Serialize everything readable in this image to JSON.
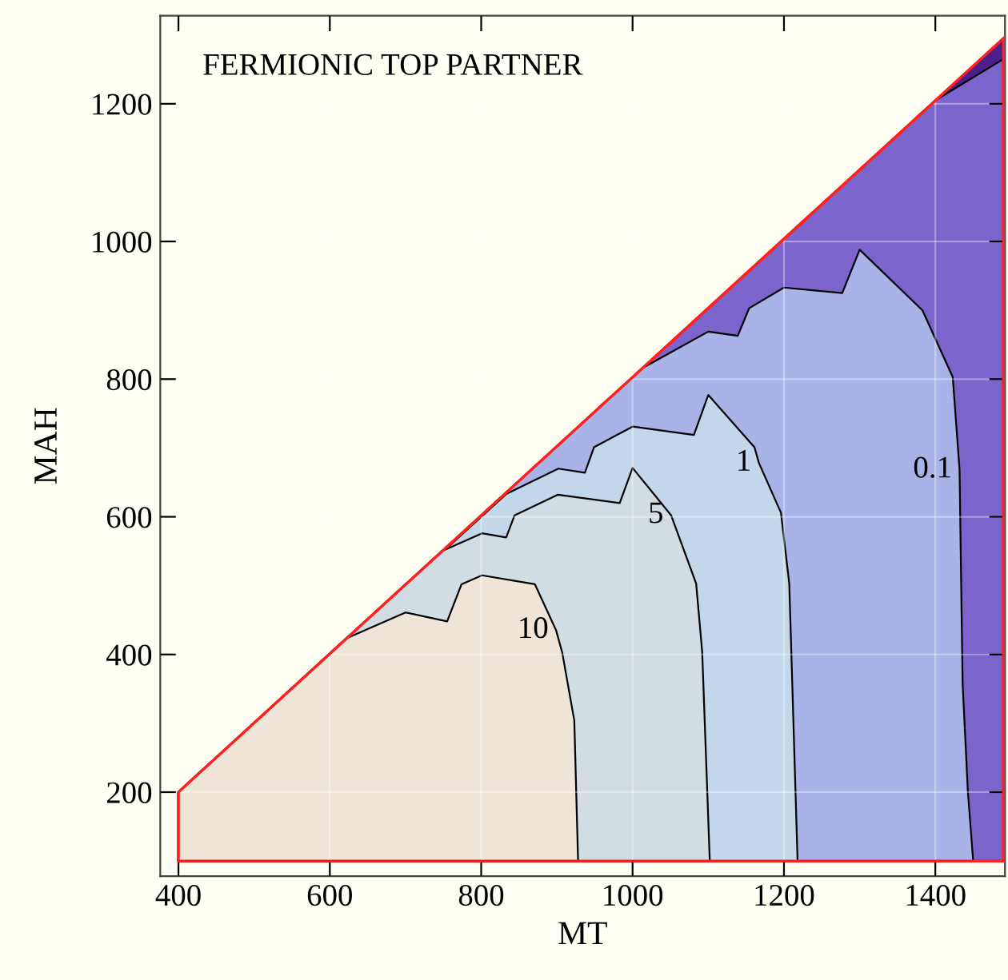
{
  "chart_data": {
    "type": "area",
    "title": "FERMIONIC TOP PARTNER",
    "xlabel": "MT",
    "ylabel": "MAH",
    "xlim": [
      376,
      1492
    ],
    "ylim": [
      78,
      1328
    ],
    "xticks": [
      400,
      600,
      800,
      1000,
      1200,
      1400
    ],
    "yticks": [
      200,
      400,
      600,
      800,
      1000,
      1200
    ],
    "grid": true,
    "series": [
      {
        "color": "#7b64cc",
        "x": [
          400,
          400,
          1490,
          1490
        ],
        "values": [
          100,
          200,
          1295,
          100
        ]
      },
      {
        "color": "#4a1f8c",
        "x": [
          1403,
          1490,
          1490
        ],
        "values": [
          1207,
          1265,
          1295
        ]
      },
      {
        "name": "0.1",
        "color": "#aab3e8",
        "x": [
          1013,
          1100,
          1139,
          1154,
          1200,
          1277,
          1300,
          1383,
          1423,
          1432,
          1436,
          1443,
          1450,
          400,
          400
        ],
        "values": [
          816,
          869,
          863,
          903,
          933,
          925,
          988,
          900,
          803,
          668,
          359,
          200,
          100,
          100,
          200
        ]
      },
      {
        "name": "1",
        "color": "#c3d7ea",
        "x": [
          833,
          902,
          937,
          949,
          1000,
          1081,
          1100,
          1161,
          1167,
          1196,
          1207,
          1218,
          400,
          400
        ],
        "values": [
          633,
          670,
          664,
          701,
          731,
          719,
          777,
          701,
          678,
          606,
          503,
          100,
          100,
          200
        ]
      },
      {
        "name": "5",
        "color": "#d2dce3",
        "x": [
          748,
          801,
          833,
          844,
          901,
          983,
          1000,
          1051,
          1084,
          1092,
          1102,
          400,
          400
        ],
        "values": [
          550,
          576,
          570,
          602,
          632,
          620,
          671,
          602,
          503,
          403,
          100,
          100,
          200
        ]
      },
      {
        "name": "10",
        "color": "#eee5d8",
        "x": [
          621,
          700,
          755,
          774,
          801,
          871,
          899,
          907,
          923,
          928,
          400,
          400
        ],
        "values": [
          423,
          461,
          448,
          502,
          515,
          502,
          435,
          403,
          304,
          100,
          100,
          200
        ]
      }
    ]
  }
}
